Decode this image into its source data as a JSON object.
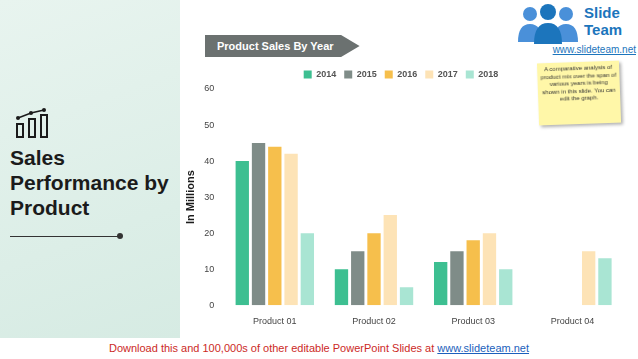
{
  "side_title": "Sales Performance by Product",
  "logo": {
    "word1": "Slide",
    "word2": "Team",
    "url": "www.slideteam.net"
  },
  "note": "A comparative analysis of product mix over the span of various years is being shown in this slide. You can edit the graph.",
  "footer": {
    "text": "Download this and 100,000s of other editable PowerPoint Slides at",
    "link": "www.slideteam.net"
  },
  "chart_data": {
    "type": "bar",
    "title": "Product Sales By Year",
    "y_label": "In Millions",
    "categories": [
      "Product 01",
      "Product 02",
      "Product 03",
      "Product 04"
    ],
    "series": [
      {
        "name": "2014",
        "color": "#3dbf91",
        "values": [
          40,
          10,
          12,
          null
        ]
      },
      {
        "name": "2015",
        "color": "#7f8c88",
        "values": [
          45,
          15,
          15,
          null
        ]
      },
      {
        "name": "2016",
        "color": "#f6bf4c",
        "values": [
          44,
          20,
          18,
          null
        ]
      },
      {
        "name": "2017",
        "color": "#fde3b6",
        "values": [
          42,
          25,
          20,
          15
        ]
      },
      {
        "name": "2018",
        "color": "#a9e5d3",
        "values": [
          20,
          5,
          10,
          13
        ]
      }
    ],
    "ylim": [
      0,
      60
    ],
    "yticks": [
      0,
      10,
      20,
      30,
      40,
      50,
      60
    ],
    "grid": false,
    "legend": "top"
  }
}
